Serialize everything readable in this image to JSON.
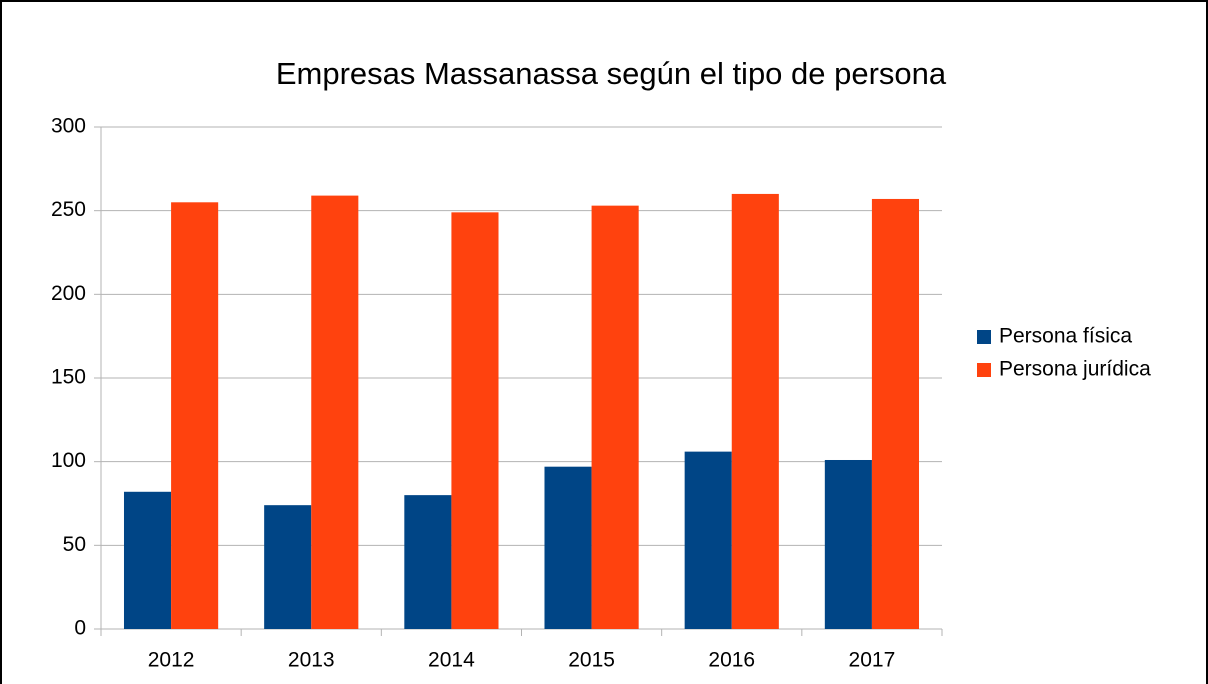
{
  "chart_data": {
    "type": "bar",
    "title": "Empresas Massanassa según el tipo de persona",
    "categories": [
      "2012",
      "2013",
      "2014",
      "2015",
      "2016",
      "2017"
    ],
    "series": [
      {
        "name": "Persona física",
        "color": "#004586",
        "values": [
          82,
          74,
          80,
          97,
          106,
          101
        ]
      },
      {
        "name": "Persona jurídica",
        "color": "#ff420e",
        "values": [
          255,
          259,
          249,
          253,
          260,
          257
        ]
      }
    ],
    "ylim": [
      0,
      300
    ],
    "yticks": [
      0,
      50,
      100,
      150,
      200,
      250,
      300
    ],
    "grid": true,
    "legend": "right"
  }
}
